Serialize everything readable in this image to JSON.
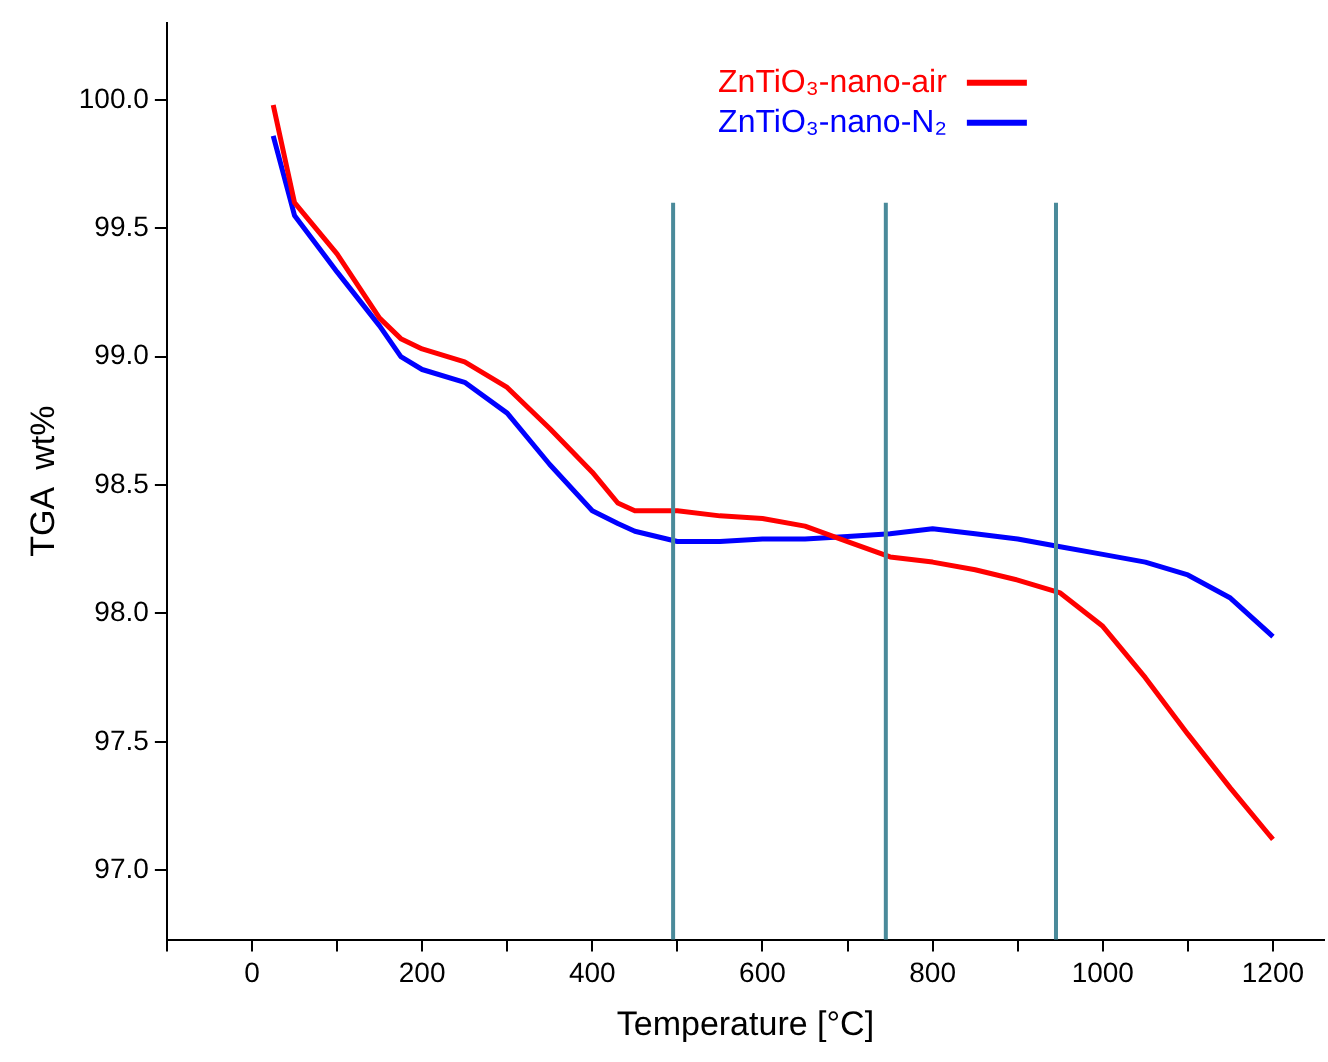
{
  "chart_data": {
    "type": "line",
    "xlabel": "Temperature [°C]",
    "ylabel": "TGA  wt%",
    "xlim": [
      -100,
      1260
    ],
    "ylim": [
      96.73,
      100.3
    ],
    "xticks": [
      {
        "value": -100,
        "label": null
      },
      0,
      {
        "value": 100,
        "label": null
      },
      200,
      {
        "value": 300,
        "label": null
      },
      400,
      {
        "value": 500,
        "label": null
      },
      600,
      {
        "value": 700,
        "label": null
      },
      800,
      {
        "value": 900,
        "label": null
      },
      1000,
      {
        "value": 1100,
        "label": null
      },
      1200
    ],
    "yticks": [
      {
        "value": 97,
        "label": "97.0"
      },
      {
        "value": 97.5,
        "label": "97.5"
      },
      {
        "value": 98,
        "label": "98.0"
      },
      {
        "value": 98.5,
        "label": "98.5"
      },
      {
        "value": 99,
        "label": "99.0"
      },
      {
        "value": 99.5,
        "label": "99.5"
      },
      {
        "value": 100,
        "label": "100.0"
      }
    ],
    "x": [
      25,
      50,
      100,
      150,
      175,
      200,
      250,
      300,
      350,
      400,
      430,
      450,
      500,
      550,
      600,
      650,
      700,
      750,
      800,
      850,
      900,
      950,
      1000,
      1050,
      1100,
      1150,
      1200
    ],
    "series": [
      {
        "name": "ZnTiO₃-nano-air",
        "color": "#ff0000",
        "values": [
          99.98,
          99.6,
          99.4,
          99.15,
          99.07,
          99.03,
          98.98,
          98.88,
          98.72,
          98.55,
          98.43,
          98.4,
          98.4,
          98.38,
          98.37,
          98.34,
          98.28,
          98.22,
          98.2,
          98.17,
          98.13,
          98.08,
          97.95,
          97.75,
          97.53,
          97.32,
          97.12
        ]
      },
      {
        "name": "ZnTiO₃-nano-N₂",
        "color": "#0000ff",
        "values": [
          99.86,
          99.55,
          99.33,
          99.12,
          99.0,
          98.95,
          98.9,
          98.78,
          98.58,
          98.4,
          98.35,
          98.32,
          98.28,
          98.28,
          98.29,
          98.29,
          98.3,
          98.31,
          98.33,
          98.31,
          98.29,
          98.26,
          98.23,
          98.2,
          98.15,
          98.06,
          97.91
        ]
      }
    ],
    "ref_lines": [
      {
        "axis": "x",
        "value": 495,
        "color": "#4a8a9a"
      },
      {
        "axis": "x",
        "value": 745,
        "color": "#4a8a9a"
      },
      {
        "axis": "x",
        "value": 945,
        "color": "#4a8a9a"
      }
    ],
    "legend": "top",
    "grid": false,
    "marker": "none",
    "line_style": "solid"
  }
}
